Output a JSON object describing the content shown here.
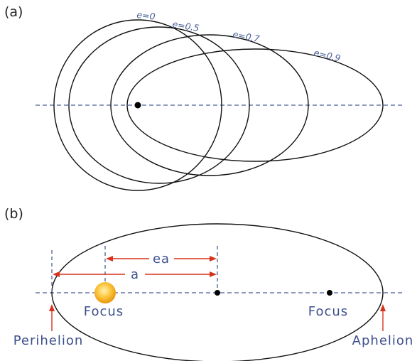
{
  "panel_a": {
    "label": "(a)",
    "orbits": [
      {
        "e": 0,
        "label": "e=0"
      },
      {
        "e": 0.5,
        "label": "e=0.5"
      },
      {
        "e": 0.7,
        "label": "e=0.7"
      },
      {
        "e": 0.9,
        "label": "e=0.9"
      }
    ]
  },
  "panel_b": {
    "label": "(b)",
    "dimension_ea": "ea",
    "dimension_a": "a",
    "focus_left_label": "Focus",
    "focus_right_label": "Focus",
    "perihelion_label": "Perihelion",
    "aphelion_label": "Aphelion"
  },
  "colors": {
    "axis_dash": "#4a5f96",
    "orbit_stroke": "#111111",
    "arrow_red": "#d8321c",
    "label_blue": "#3d4f8c",
    "sun_outer": "#f2a80e",
    "sun_inner": "#fde07a"
  }
}
